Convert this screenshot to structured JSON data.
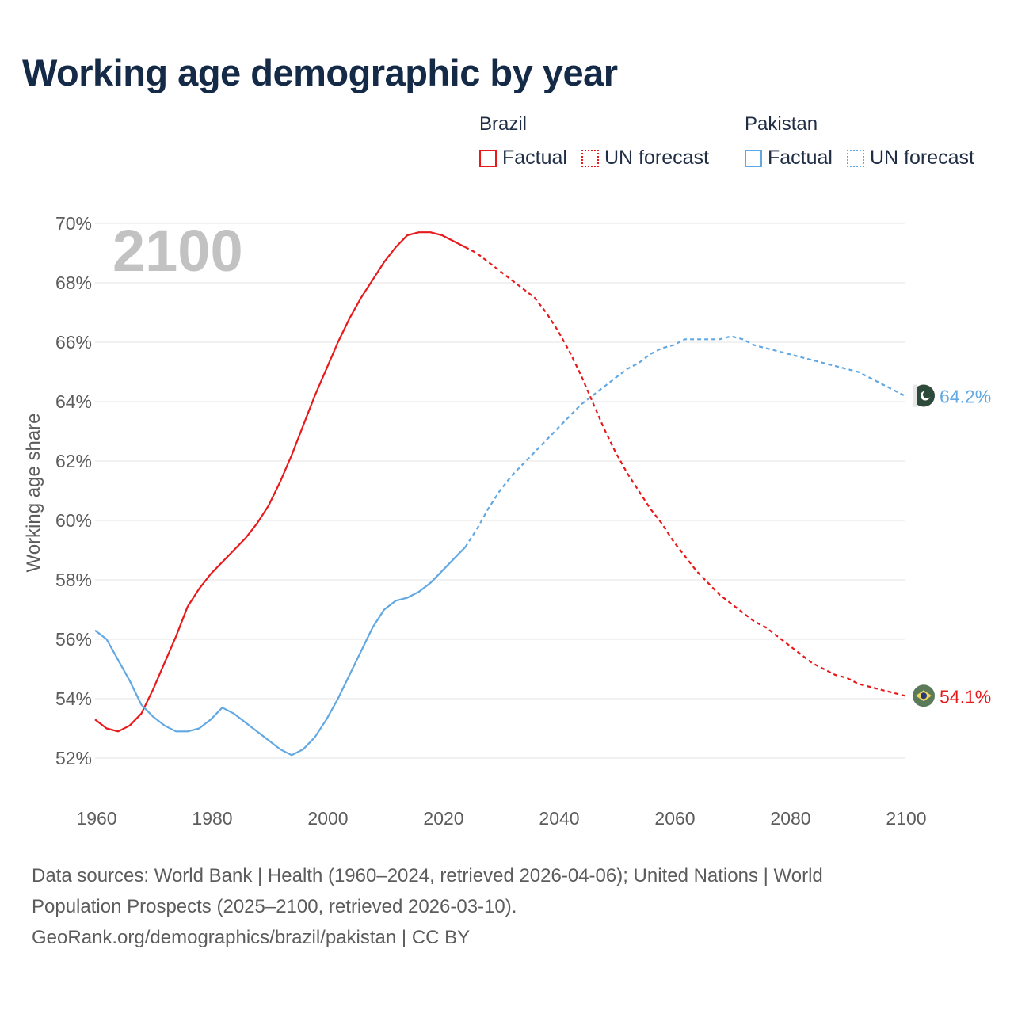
{
  "title": "Working age demographic by year",
  "legend": {
    "groups": [
      {
        "name": "Brazil",
        "color": "#e8191a",
        "factual_label": "Factual",
        "forecast_label": "UN forecast"
      },
      {
        "name": "Pakistan",
        "color": "#62a8e3",
        "factual_label": "Factual",
        "forecast_label": "UN forecast"
      }
    ]
  },
  "footer": {
    "line1": "Data sources: World Bank | Health (1960–2024, retrieved 2026-04-06); United Nations | World",
    "line2": "Population Prospects (2025–2100, retrieved 2026-03-10).",
    "line3": "GeoRank.org/demographics/brazil/pakistan | CC BY"
  },
  "chart_data": {
    "type": "line",
    "title": "Working age demographic by year",
    "xlabel": "",
    "ylabel": "Working age share",
    "year_watermark": "2100",
    "xlim": [
      1960,
      2100
    ],
    "ylim": [
      51.5,
      70
    ],
    "x_ticks": [
      1960,
      1980,
      2000,
      2020,
      2040,
      2060,
      2080,
      2100
    ],
    "y_ticks": [
      52,
      54,
      56,
      58,
      60,
      62,
      64,
      66,
      68,
      70
    ],
    "y_tick_labels": [
      "52%",
      "54%",
      "56%",
      "58%",
      "60%",
      "62%",
      "64%",
      "66%",
      "68%",
      "70%"
    ],
    "grid": true,
    "forecast_start": 2025,
    "series": [
      {
        "name": "Brazil",
        "color": "#e8191a",
        "end_label": "54.1%",
        "flag_icon": "brazil-flag-icon",
        "points": [
          [
            1960,
            53.3
          ],
          [
            1962,
            53.0
          ],
          [
            1964,
            52.9
          ],
          [
            1966,
            53.1
          ],
          [
            1968,
            53.5
          ],
          [
            1970,
            54.3
          ],
          [
            1972,
            55.2
          ],
          [
            1974,
            56.1
          ],
          [
            1976,
            57.1
          ],
          [
            1978,
            57.7
          ],
          [
            1980,
            58.2
          ],
          [
            1982,
            58.6
          ],
          [
            1984,
            59.0
          ],
          [
            1986,
            59.4
          ],
          [
            1988,
            59.9
          ],
          [
            1990,
            60.5
          ],
          [
            1992,
            61.3
          ],
          [
            1994,
            62.2
          ],
          [
            1996,
            63.2
          ],
          [
            1998,
            64.2
          ],
          [
            2000,
            65.1
          ],
          [
            2002,
            66.0
          ],
          [
            2004,
            66.8
          ],
          [
            2006,
            67.5
          ],
          [
            2008,
            68.1
          ],
          [
            2010,
            68.7
          ],
          [
            2012,
            69.2
          ],
          [
            2014,
            69.6
          ],
          [
            2016,
            69.7
          ],
          [
            2018,
            69.7
          ],
          [
            2020,
            69.6
          ],
          [
            2022,
            69.4
          ],
          [
            2024,
            69.2
          ],
          [
            2026,
            69.0
          ],
          [
            2028,
            68.7
          ],
          [
            2030,
            68.4
          ],
          [
            2032,
            68.1
          ],
          [
            2034,
            67.8
          ],
          [
            2036,
            67.5
          ],
          [
            2038,
            67.0
          ],
          [
            2040,
            66.4
          ],
          [
            2042,
            65.7
          ],
          [
            2044,
            64.9
          ],
          [
            2046,
            64.0
          ],
          [
            2048,
            63.1
          ],
          [
            2050,
            62.3
          ],
          [
            2052,
            61.6
          ],
          [
            2054,
            61.0
          ],
          [
            2056,
            60.4
          ],
          [
            2058,
            59.9
          ],
          [
            2060,
            59.3
          ],
          [
            2062,
            58.8
          ],
          [
            2064,
            58.3
          ],
          [
            2066,
            57.9
          ],
          [
            2068,
            57.5
          ],
          [
            2070,
            57.2
          ],
          [
            2072,
            56.9
          ],
          [
            2074,
            56.6
          ],
          [
            2076,
            56.4
          ],
          [
            2078,
            56.1
          ],
          [
            2080,
            55.8
          ],
          [
            2082,
            55.5
          ],
          [
            2084,
            55.2
          ],
          [
            2086,
            55.0
          ],
          [
            2088,
            54.8
          ],
          [
            2090,
            54.7
          ],
          [
            2092,
            54.5
          ],
          [
            2094,
            54.4
          ],
          [
            2096,
            54.3
          ],
          [
            2098,
            54.2
          ],
          [
            2100,
            54.1
          ]
        ]
      },
      {
        "name": "Pakistan",
        "color": "#62a8e3",
        "end_label": "64.2%",
        "flag_icon": "pakistan-flag-icon",
        "points": [
          [
            1960,
            56.3
          ],
          [
            1962,
            56.0
          ],
          [
            1964,
            55.3
          ],
          [
            1966,
            54.6
          ],
          [
            1968,
            53.8
          ],
          [
            1970,
            53.4
          ],
          [
            1972,
            53.1
          ],
          [
            1974,
            52.9
          ],
          [
            1976,
            52.9
          ],
          [
            1978,
            53.0
          ],
          [
            1980,
            53.3
          ],
          [
            1982,
            53.7
          ],
          [
            1984,
            53.5
          ],
          [
            1986,
            53.2
          ],
          [
            1988,
            52.9
          ],
          [
            1990,
            52.6
          ],
          [
            1992,
            52.3
          ],
          [
            1994,
            52.1
          ],
          [
            1996,
            52.3
          ],
          [
            1998,
            52.7
          ],
          [
            2000,
            53.3
          ],
          [
            2002,
            54.0
          ],
          [
            2004,
            54.8
          ],
          [
            2006,
            55.6
          ],
          [
            2008,
            56.4
          ],
          [
            2010,
            57.0
          ],
          [
            2012,
            57.3
          ],
          [
            2014,
            57.4
          ],
          [
            2016,
            57.6
          ],
          [
            2018,
            57.9
          ],
          [
            2020,
            58.3
          ],
          [
            2022,
            58.7
          ],
          [
            2024,
            59.1
          ],
          [
            2026,
            59.7
          ],
          [
            2028,
            60.4
          ],
          [
            2030,
            61.0
          ],
          [
            2032,
            61.5
          ],
          [
            2034,
            61.9
          ],
          [
            2036,
            62.3
          ],
          [
            2038,
            62.7
          ],
          [
            2040,
            63.1
          ],
          [
            2042,
            63.5
          ],
          [
            2044,
            63.9
          ],
          [
            2046,
            64.2
          ],
          [
            2048,
            64.5
          ],
          [
            2050,
            64.8
          ],
          [
            2052,
            65.1
          ],
          [
            2054,
            65.3
          ],
          [
            2056,
            65.6
          ],
          [
            2058,
            65.8
          ],
          [
            2060,
            65.9
          ],
          [
            2062,
            66.1
          ],
          [
            2064,
            66.1
          ],
          [
            2066,
            66.1
          ],
          [
            2068,
            66.1
          ],
          [
            2070,
            66.2
          ],
          [
            2072,
            66.1
          ],
          [
            2074,
            65.9
          ],
          [
            2076,
            65.8
          ],
          [
            2078,
            65.7
          ],
          [
            2080,
            65.6
          ],
          [
            2082,
            65.5
          ],
          [
            2084,
            65.4
          ],
          [
            2086,
            65.3
          ],
          [
            2088,
            65.2
          ],
          [
            2090,
            65.1
          ],
          [
            2092,
            65.0
          ],
          [
            2094,
            64.8
          ],
          [
            2096,
            64.6
          ],
          [
            2098,
            64.4
          ],
          [
            2100,
            64.2
          ]
        ]
      }
    ]
  }
}
